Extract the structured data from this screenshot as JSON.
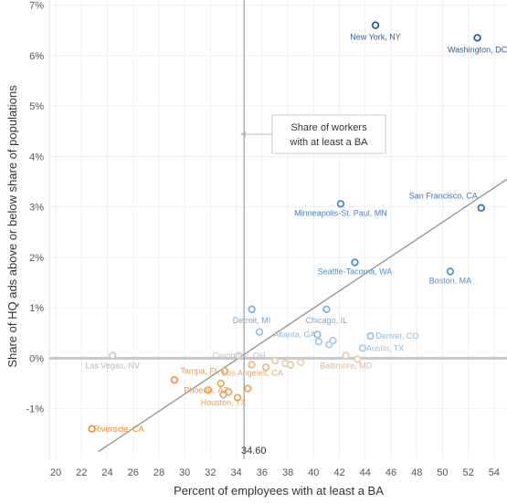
{
  "chart_data": {
    "type": "scatter",
    "xlabel": "Percent of employees with at least a BA",
    "ylabel": "Share of HQ ads above or below share of populations",
    "xlim": [
      19.5,
      55
    ],
    "ylim": [
      -2.0,
      7.1
    ],
    "x_ticks": [
      20,
      22,
      24,
      26,
      28,
      30,
      32,
      34,
      36,
      38,
      40,
      42,
      44,
      46,
      48,
      50,
      52,
      54
    ],
    "y_ticks": [
      {
        "value": 7,
        "label": "7%"
      },
      {
        "value": 6,
        "label": "6%"
      },
      {
        "value": 5,
        "label": "5%"
      },
      {
        "value": 4,
        "label": "4%"
      },
      {
        "value": 3,
        "label": "3%"
      },
      {
        "value": 2,
        "label": "2%"
      },
      {
        "value": 1,
        "label": "1%"
      },
      {
        "value": 0,
        "label": "0%"
      },
      {
        "value": -1,
        "label": "-1%"
      }
    ],
    "grid": true,
    "reference_line": {
      "x": 34.6,
      "label": "34.60"
    },
    "annotation": {
      "lines": [
        "Share of workers",
        "with at least a BA"
      ]
    },
    "trend_line": {
      "x1": 23.3,
      "y1": -1.85,
      "x2": 55,
      "y2": 3.55
    },
    "points": [
      {
        "label": "New York, NY",
        "x": 44.8,
        "y": 6.6,
        "color": "#2c5f93"
      },
      {
        "label": "Washington, DC",
        "x": 52.7,
        "y": 6.35,
        "color": "#2c5f93"
      },
      {
        "label": "San Francisco, CA",
        "x": 53.0,
        "y": 2.98,
        "color": "#3a7ab5"
      },
      {
        "label": "Minneapolis-St. Paul, MN",
        "x": 42.1,
        "y": 3.06,
        "color": "#4a88c0"
      },
      {
        "label": "Seattle-Tacoma, WA",
        "x": 43.2,
        "y": 1.9,
        "color": "#4f8ec5"
      },
      {
        "label": "Boston, MA",
        "x": 50.6,
        "y": 1.72,
        "color": "#5a96c9"
      },
      {
        "label": "Detroit, MI",
        "x": 35.2,
        "y": 0.97,
        "color": "#7fb0d8"
      },
      {
        "label": "Chicago, IL",
        "x": 41.0,
        "y": 0.97,
        "color": "#7fb0d8"
      },
      {
        "label": "Atlanta, GA",
        "x": 40.3,
        "y": 0.47,
        "color": "#9ec3e0"
      },
      {
        "label": "Denver, CO",
        "x": 44.4,
        "y": 0.44,
        "color": "#9ec3e0"
      },
      {
        "label": "Austin, TX",
        "x": 43.8,
        "y": 0.2,
        "color": "#a9cbe6"
      },
      {
        "label": "",
        "x": 35.8,
        "y": 0.52,
        "color": "#9ec3e0"
      },
      {
        "label": "",
        "x": 40.4,
        "y": 0.33,
        "color": "#a9cbe6"
      },
      {
        "label": "",
        "x": 41.2,
        "y": 0.27,
        "color": "#a9cbe6"
      },
      {
        "label": "",
        "x": 41.5,
        "y": 0.35,
        "color": "#a9cbe6"
      },
      {
        "label": "Las Vegas, NV",
        "x": 24.4,
        "y": 0.05,
        "color": "#c9c9c9"
      },
      {
        "label": "Cincinnati, OH",
        "x": 34.2,
        "y": 0.05,
        "color": "#d0d0d0"
      },
      {
        "label": "Baltimore, MD",
        "x": 42.5,
        "y": 0.05,
        "color": "#e8ceb0"
      },
      {
        "label": "",
        "x": 43.4,
        "y": -0.02,
        "color": "#e8ceb0"
      },
      {
        "label": "",
        "x": 37.0,
        "y": -0.05,
        "color": "#e8ceb0"
      },
      {
        "label": "",
        "x": 37.8,
        "y": -0.1,
        "color": "#e8ceb0"
      },
      {
        "label": "",
        "x": 38.2,
        "y": -0.13,
        "color": "#e8ceb0"
      },
      {
        "label": "",
        "x": 39.0,
        "y": -0.08,
        "color": "#e8ceb0"
      },
      {
        "label": "Los Angeles, CA",
        "x": 35.2,
        "y": -0.13,
        "color": "#e8b98a"
      },
      {
        "label": "",
        "x": 36.3,
        "y": -0.18,
        "color": "#e8b98a"
      },
      {
        "label": "Tampa, FL",
        "x": 33.1,
        "y": -0.25,
        "color": "#e9a86a"
      },
      {
        "label": "",
        "x": 32.8,
        "y": -0.5,
        "color": "#e9a86a"
      },
      {
        "label": "",
        "x": 33.4,
        "y": -0.67,
        "color": "#e9a86a"
      },
      {
        "label": "",
        "x": 34.1,
        "y": -0.78,
        "color": "#e9a86a"
      },
      {
        "label": "",
        "x": 34.9,
        "y": -0.6,
        "color": "#e9a86a"
      },
      {
        "label": "Phoenix, AZ",
        "x": 31.8,
        "y": -0.63,
        "color": "#e9a86a"
      },
      {
        "label": "Houston, TX",
        "x": 33.0,
        "y": -0.72,
        "color": "#e9a86a"
      },
      {
        "label": "",
        "x": 29.2,
        "y": -0.43,
        "color": "#ef9a50"
      },
      {
        "label": "Riverside, CA",
        "x": 22.8,
        "y": -1.4,
        "color": "#f0923c"
      }
    ]
  }
}
